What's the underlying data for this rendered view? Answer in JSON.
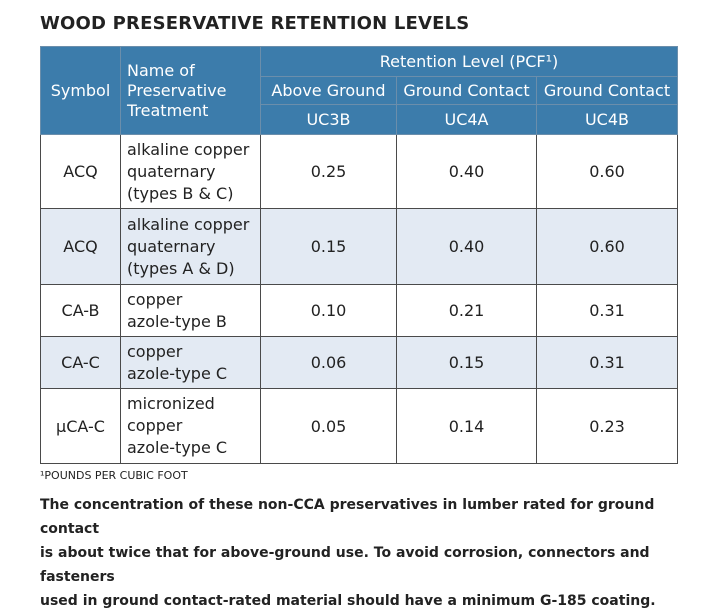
{
  "title": "WOOD PRESERVATIVE RETENTION LEVELS",
  "table": {
    "header": {
      "symbol": "Symbol",
      "name": [
        "Name of",
        "Preservative",
        "Treatment"
      ],
      "group": "Retention Level (PCF¹)",
      "columns": [
        {
          "label": "Above Ground",
          "code": "UC3B"
        },
        {
          "label": "Ground Contact",
          "code": "UC4A"
        },
        {
          "label": "Ground Contact",
          "code": "UC4B"
        }
      ]
    },
    "rows": [
      {
        "symbol": "ACQ",
        "name": [
          "alkaline copper",
          "quaternary",
          "(types B & C)"
        ],
        "values": [
          "0.25",
          "0.40",
          "0.60"
        ]
      },
      {
        "symbol": "ACQ",
        "name": [
          "alkaline copper",
          "quaternary",
          "(types A & D)"
        ],
        "values": [
          "0.15",
          "0.40",
          "0.60"
        ]
      },
      {
        "symbol": "CA-B",
        "name": [
          "copper",
          "azole-type B"
        ],
        "values": [
          "0.10",
          "0.21",
          "0.31"
        ]
      },
      {
        "symbol": "CA-C",
        "name": [
          "copper",
          "azole-type C"
        ],
        "values": [
          "0.06",
          "0.15",
          "0.31"
        ]
      },
      {
        "symbol": "μCA-C",
        "name": [
          "micronized",
          "copper",
          "azole-type C"
        ],
        "values": [
          "0.05",
          "0.14",
          "0.23"
        ]
      }
    ]
  },
  "footnote": "¹POUNDS PER CUBIC FOOT",
  "caption": [
    "The concentration of these non-CCA preservatives in lumber rated for ground contact",
    "is about twice that for above-ground use. To avoid corrosion, connectors and fasteners",
    "used in ground contact-rated material should have a minimum G-185 coating."
  ]
}
